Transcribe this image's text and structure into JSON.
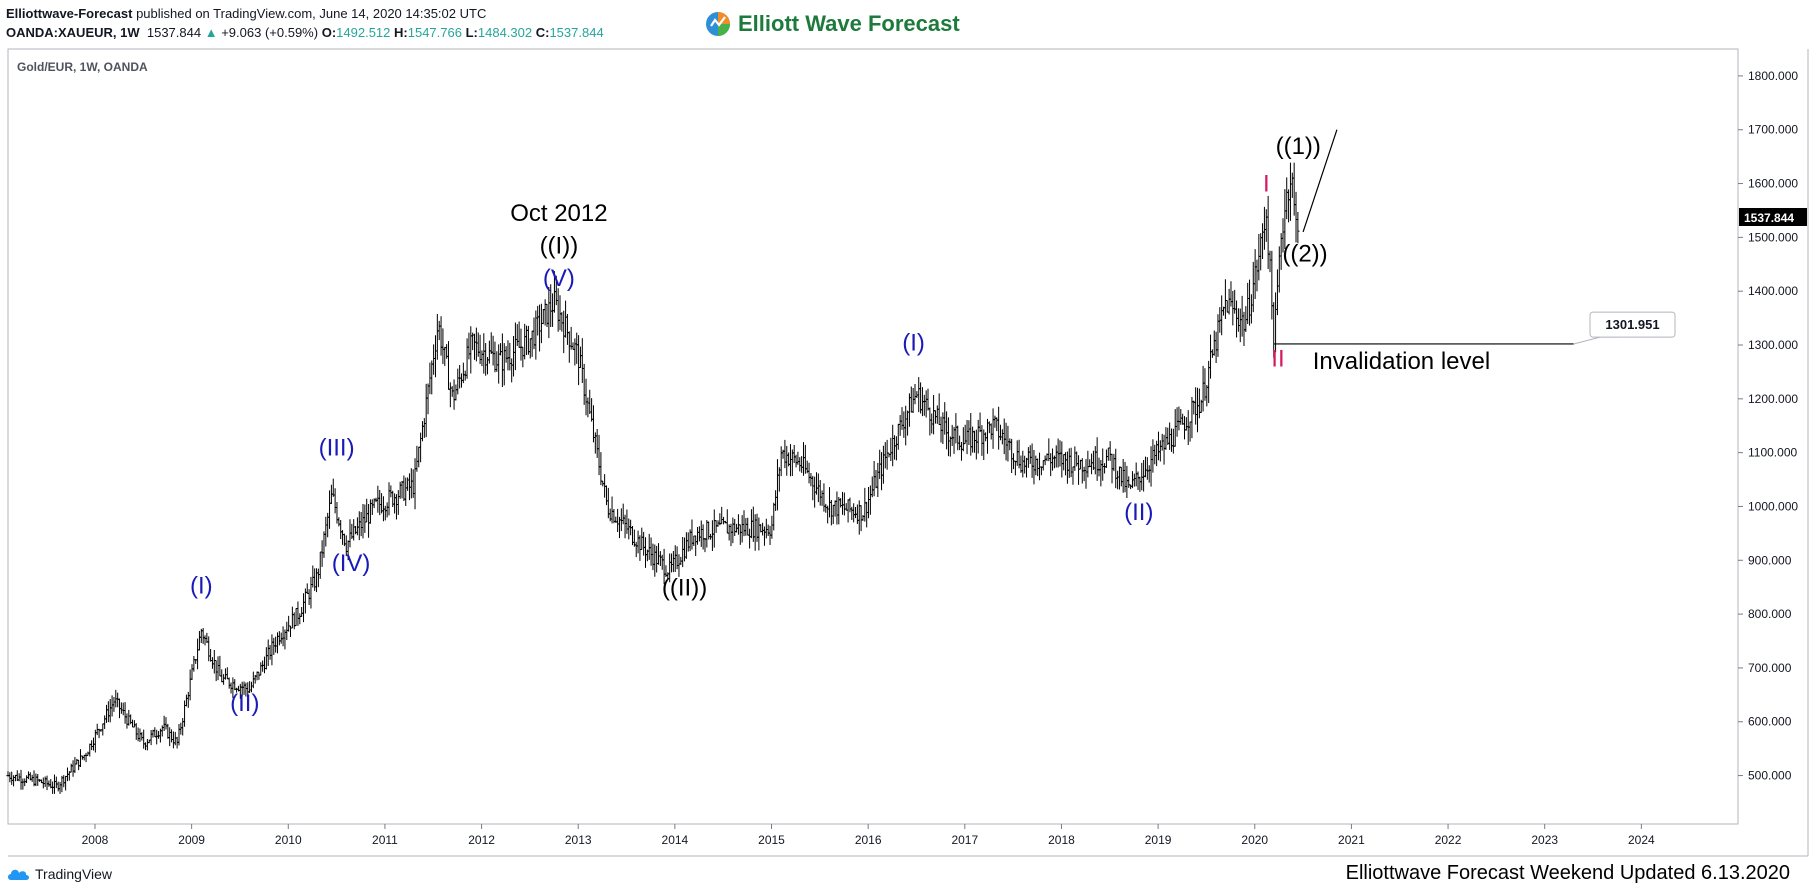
{
  "header": {
    "publisher": "Elliottwave-Forecast",
    "published_text": "published on TradingView.com, June 14, 2020 14:35:02 UTC",
    "symbol": "OANDA:XAUEUR, 1W",
    "last": "1537.844",
    "change_arrow": "▲",
    "change": "+9.063 (+0.59%)",
    "o_label": "O:",
    "o": "1492.512",
    "h_label": "H:",
    "h": "1547.766",
    "l_label": "L:",
    "l": "1484.302",
    "c_label": "C:",
    "c": "1537.844"
  },
  "brand": {
    "name": "Elliott Wave Forecast",
    "logo_icon": "ewf-globe-logo-icon",
    "color": "#1d7a3c"
  },
  "footer": {
    "tradingview_label": "TradingView",
    "tradingview_icon": "tradingview-cloud-icon",
    "note": "Elliottwave Forecast Weekend Updated 6.13.2020"
  },
  "colors": {
    "wave_blue": "#1a1ab8",
    "wave_red": "#d6195d",
    "wave_black": "#000000",
    "bars": "#000000",
    "price_tag": "#000000"
  },
  "chart_data": {
    "type": "ohlc",
    "pane_label": "Gold/EUR, 1W, OANDA",
    "x_domain": [
      2007.1,
      2025.0
    ],
    "ylim": [
      410,
      1850
    ],
    "x_ticks": [
      2008,
      2009,
      2010,
      2011,
      2012,
      2013,
      2014,
      2015,
      2016,
      2017,
      2018,
      2019,
      2020,
      2021,
      2022,
      2023,
      2024
    ],
    "y_ticks": [
      "500.000",
      "600.000",
      "700.000",
      "800.000",
      "900.000",
      "1000.000",
      "1100.000",
      "1200.000",
      "1300.000",
      "1400.000",
      "1500.000",
      "1600.000",
      "1700.000",
      "1800.000"
    ],
    "last_price": "1537.844",
    "invalidation_label_value": "1301.951",
    "invalidation_label": "Invalidation level",
    "invalidation": {
      "x_start": 2020.2,
      "x_end": 2023.3,
      "y": 1301.951
    },
    "projection_line": {
      "x": [
        2020.5,
        2020.85
      ],
      "y": [
        1510,
        1700
      ]
    },
    "price_path": {
      "x": [
        2007.1,
        2007.4,
        2007.6,
        2007.9,
        2008.2,
        2008.5,
        2008.7,
        2008.85,
        2009.1,
        2009.3,
        2009.6,
        2009.9,
        2010.1,
        2010.3,
        2010.45,
        2010.6,
        2010.9,
        2011.3,
        2011.55,
        2011.7,
        2011.9,
        2012.2,
        2012.5,
        2012.75,
        2013.0,
        2013.3,
        2013.5,
        2013.7,
        2013.95,
        2014.2,
        2014.5,
        2014.8,
        2015.0,
        2015.1,
        2015.3,
        2015.6,
        2015.95,
        2016.2,
        2016.5,
        2016.8,
        2017.0,
        2017.3,
        2017.6,
        2017.9,
        2018.2,
        2018.5,
        2018.7,
        2018.9,
        2019.2,
        2019.45,
        2019.7,
        2019.9,
        2020.05,
        2020.12,
        2020.2,
        2020.27,
        2020.33,
        2020.38,
        2020.42,
        2020.45
      ],
      "y": [
        500,
        490,
        480,
        540,
        640,
        560,
        590,
        560,
        770,
        680,
        660,
        760,
        800,
        870,
        1020,
        930,
        1000,
        1040,
        1340,
        1200,
        1300,
        1270,
        1310,
        1380,
        1280,
        1000,
        960,
        920,
        880,
        950,
        960,
        960,
        960,
        1100,
        1080,
        1000,
        990,
        1100,
        1210,
        1140,
        1120,
        1150,
        1080,
        1090,
        1080,
        1090,
        1030,
        1080,
        1140,
        1200,
        1380,
        1340,
        1470,
        1550,
        1300,
        1500,
        1580,
        1620,
        1520,
        1537.844
      ]
    },
    "annotations": [
      {
        "text": "(I)",
        "x": 2009.1,
        "y": 838,
        "color": "blue"
      },
      {
        "text": "(II)",
        "x": 2009.55,
        "y": 620,
        "color": "blue"
      },
      {
        "text": "(III)",
        "x": 2010.5,
        "y": 1095,
        "color": "blue"
      },
      {
        "text": "(IV)",
        "x": 2010.65,
        "y": 880,
        "color": "blue"
      },
      {
        "text": "(V)",
        "x": 2012.8,
        "y": 1410,
        "color": "blue"
      },
      {
        "text": "((I))",
        "x": 2012.8,
        "y": 1470,
        "color": "black"
      },
      {
        "text": "Oct 2012",
        "x": 2012.8,
        "y": 1530,
        "color": "black"
      },
      {
        "text": "((II))",
        "x": 2014.1,
        "y": 835,
        "color": "black"
      },
      {
        "text": "(I)",
        "x": 2016.47,
        "y": 1290,
        "color": "blue"
      },
      {
        "text": "(II)",
        "x": 2018.8,
        "y": 975,
        "color": "blue"
      },
      {
        "text": "I",
        "x": 2020.12,
        "y": 1585,
        "color": "red"
      },
      {
        "text": "II",
        "x": 2020.24,
        "y": 1260,
        "color": "red"
      },
      {
        "text": "((1))",
        "x": 2020.45,
        "y": 1655,
        "color": "black"
      },
      {
        "text": "((2))",
        "x": 2020.52,
        "y": 1455,
        "color": "black"
      }
    ]
  }
}
